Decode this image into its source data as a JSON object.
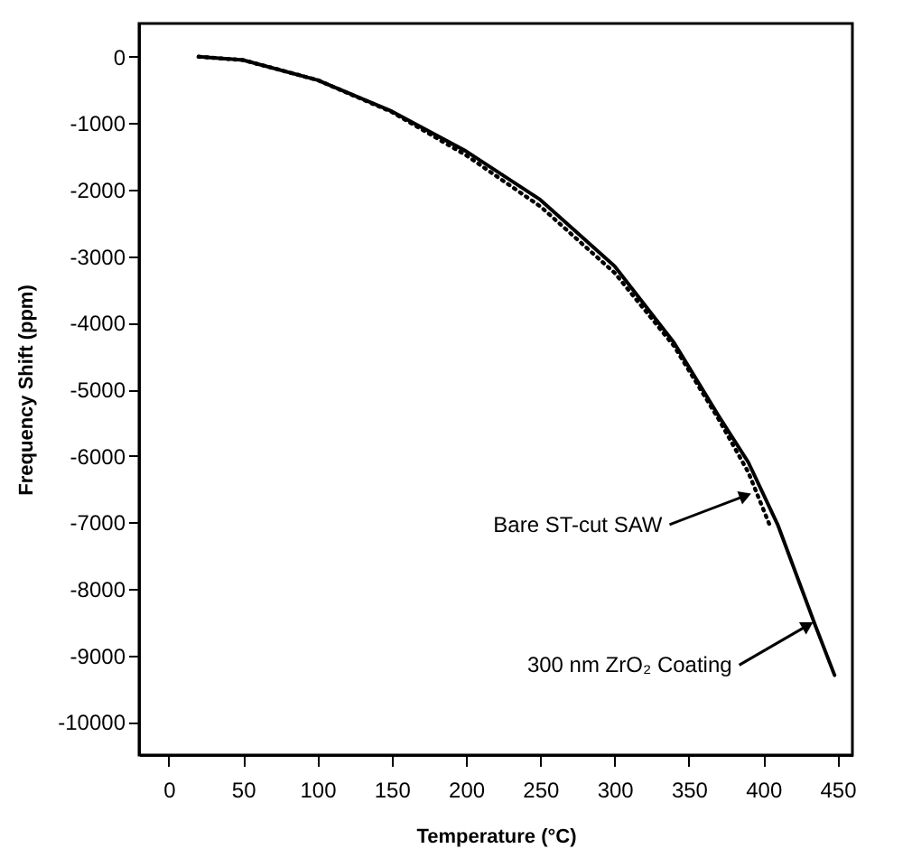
{
  "chart_data": {
    "type": "line",
    "xlabel": "Temperature (°C)",
    "ylabel": "Frequency Shift (ppm)",
    "xlim": [
      -20,
      460
    ],
    "xticks": [
      0,
      50,
      100,
      150,
      200,
      250,
      300,
      350,
      400,
      450
    ],
    "ylim": [
      -10500,
      500
    ],
    "yticks": [
      0,
      -1000,
      -2000,
      -3000,
      -4000,
      -5000,
      -6000,
      -7000,
      -8000,
      -9000,
      -10000
    ],
    "grid": false,
    "marker": "none",
    "series": [
      {
        "color": "#000000",
        "line_style": "solid",
        "x": [
          20,
          50,
          100,
          150,
          200,
          250,
          300,
          340,
          370,
          390,
          410,
          435,
          448
        ],
        "values": [
          0,
          -50,
          -350,
          -820,
          -1420,
          -2150,
          -3150,
          -4300,
          -5400,
          -6100,
          -7050,
          -8550,
          -9300
        ]
      },
      {
        "color": "#000000",
        "line_style": "dotted",
        "x": [
          20,
          50,
          100,
          150,
          200,
          250,
          300,
          340,
          370,
          390,
          405
        ],
        "values": [
          0,
          -50,
          -350,
          -830,
          -1480,
          -2250,
          -3250,
          -4350,
          -5450,
          -6250,
          -7080
        ]
      }
    ],
    "annotations": [
      {
        "text": "Bare ST-cut SAW",
        "x": 388,
        "y": -6600
      },
      {
        "text": "300 nm ZrO₂ Coating",
        "x": 430,
        "y": -8550
      }
    ]
  }
}
